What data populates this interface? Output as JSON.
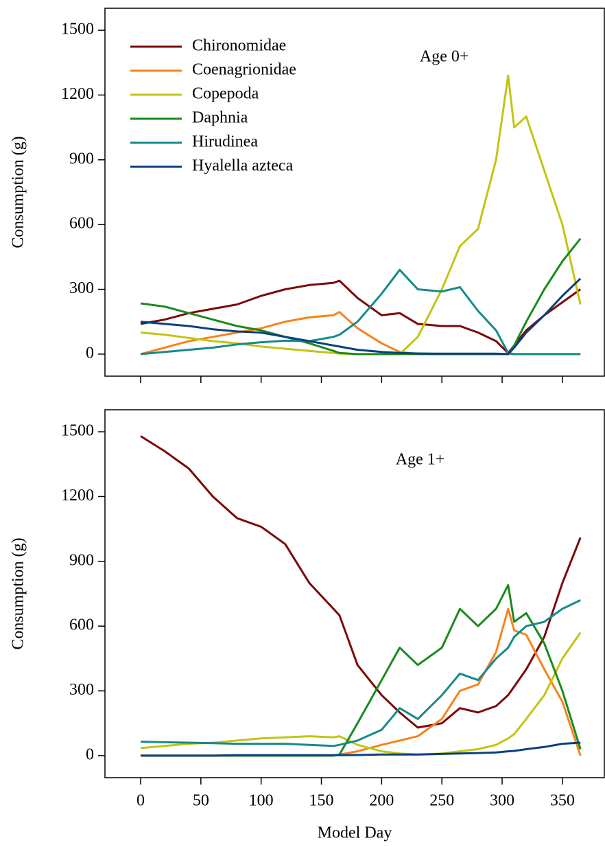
{
  "chart_data": [
    {
      "type": "line",
      "ylabel": "Consumption (g)",
      "annotation": "Age 0+",
      "annotation_xy": [
        252,
        1373
      ],
      "x": [
        0,
        20,
        40,
        60,
        80,
        100,
        120,
        140,
        160,
        165,
        180,
        200,
        215,
        230,
        250,
        265,
        280,
        295,
        305,
        310,
        320,
        335,
        350,
        365
      ],
      "xlim": [
        -29.6,
        384.8
      ],
      "xticks": [
        0,
        50,
        100,
        150,
        200,
        250,
        300,
        350
      ],
      "xticklabels": false,
      "ylim": [
        -102,
        1602
      ],
      "yticks": [
        0,
        300,
        600,
        900,
        1200,
        1500
      ],
      "legend": "upper left",
      "series": [
        {
          "name": "Chironomidae",
          "color": "#7a0a0a",
          "values": [
            140,
            160,
            190,
            210,
            230,
            270,
            300,
            320,
            330,
            340,
            260,
            180,
            190,
            140,
            130,
            130,
            100,
            60,
            5,
            40,
            110,
            180,
            240,
            300
          ]
        },
        {
          "name": "Coenagrionidae",
          "color": "#f7821e",
          "values": [
            0,
            30,
            60,
            80,
            100,
            120,
            150,
            170,
            180,
            195,
            120,
            50,
            10,
            0,
            0,
            0,
            0,
            0,
            0,
            0,
            0,
            0,
            0,
            0
          ]
        },
        {
          "name": "Copepoda",
          "color": "#c2c514",
          "values": [
            100,
            90,
            75,
            60,
            50,
            35,
            25,
            15,
            5,
            3,
            0,
            0,
            0,
            80,
            300,
            500,
            580,
            900,
            1290,
            1050,
            1100,
            850,
            600,
            230
          ]
        },
        {
          "name": "Daphnia",
          "color": "#1b8a1b",
          "values": [
            235,
            220,
            190,
            160,
            130,
            110,
            80,
            50,
            15,
            5,
            0,
            0,
            0,
            0,
            0,
            0,
            0,
            0,
            0,
            40,
            150,
            300,
            430,
            535
          ]
        },
        {
          "name": "Hirudinea",
          "color": "#168a8a",
          "values": [
            0,
            10,
            20,
            30,
            45,
            55,
            62,
            60,
            80,
            90,
            150,
            280,
            390,
            300,
            290,
            310,
            200,
            110,
            5,
            0,
            0,
            0,
            0,
            0
          ]
        },
        {
          "name": "Hyalella azteca",
          "color": "#0b3f80",
          "values": [
            150,
            140,
            130,
            115,
            105,
            100,
            80,
            60,
            40,
            35,
            20,
            10,
            5,
            3,
            2,
            2,
            2,
            2,
            0,
            30,
            100,
            180,
            270,
            350
          ]
        }
      ]
    },
    {
      "type": "line",
      "ylabel": "Consumption (g)",
      "xlabel": "Model Day",
      "annotation": "Age 1+",
      "annotation_xy": [
        232,
        1366
      ],
      "x": [
        0,
        20,
        40,
        60,
        80,
        100,
        120,
        140,
        160,
        165,
        180,
        200,
        215,
        230,
        250,
        265,
        280,
        295,
        305,
        310,
        320,
        335,
        350,
        365
      ],
      "xlim": [
        -29.6,
        384.8
      ],
      "xticks": [
        0,
        50,
        100,
        150,
        200,
        250,
        300,
        350
      ],
      "xticklabels": true,
      "ylim": [
        -102,
        1602
      ],
      "yticks": [
        0,
        300,
        600,
        900,
        1200,
        1500
      ],
      "series": [
        {
          "name": "Chironomidae",
          "color": "#7a0a0a",
          "values": [
            1480,
            1410,
            1330,
            1200,
            1100,
            1060,
            980,
            800,
            680,
            650,
            420,
            280,
            200,
            130,
            150,
            220,
            200,
            230,
            280,
            320,
            400,
            550,
            800,
            1010
          ]
        },
        {
          "name": "Coenagrionidae",
          "color": "#f7821e",
          "values": [
            0,
            0,
            0,
            0,
            0,
            0,
            0,
            0,
            0,
            5,
            20,
            50,
            70,
            90,
            170,
            300,
            330,
            480,
            680,
            580,
            560,
            400,
            250,
            0
          ]
        },
        {
          "name": "Copepoda",
          "color": "#c2c514",
          "values": [
            35,
            45,
            55,
            60,
            70,
            80,
            85,
            90,
            85,
            90,
            50,
            20,
            10,
            5,
            10,
            20,
            30,
            50,
            80,
            100,
            170,
            280,
            450,
            570
          ]
        },
        {
          "name": "Daphnia",
          "color": "#1b8a1b",
          "values": [
            0,
            0,
            0,
            0,
            0,
            0,
            0,
            0,
            0,
            5,
            150,
            350,
            500,
            420,
            500,
            680,
            600,
            680,
            790,
            620,
            660,
            520,
            300,
            30
          ]
        },
        {
          "name": "Hirudinea",
          "color": "#168a8a",
          "values": [
            65,
            62,
            60,
            58,
            55,
            55,
            55,
            50,
            45,
            50,
            70,
            120,
            220,
            170,
            280,
            380,
            350,
            450,
            500,
            550,
            600,
            620,
            680,
            720
          ]
        },
        {
          "name": "Hyalella azteca",
          "color": "#0b3f80",
          "values": [
            0,
            0,
            0,
            0,
            2,
            2,
            2,
            2,
            2,
            2,
            3,
            5,
            5,
            5,
            8,
            10,
            12,
            15,
            20,
            22,
            30,
            40,
            55,
            60
          ]
        }
      ]
    }
  ]
}
